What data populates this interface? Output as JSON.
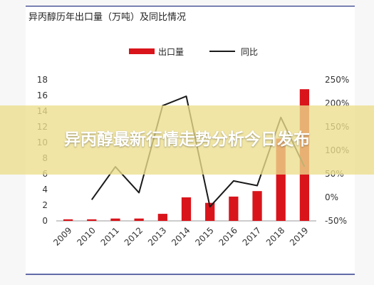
{
  "banner": {
    "text": "异丙醇最新行情走势分析今日发布"
  },
  "chart_data": {
    "type": "bar+line",
    "title": "异丙醇历年出口量（万吨）及同比情况",
    "legend": {
      "bar_label": "出口量",
      "line_label": "同比",
      "placement": "top-center"
    },
    "categories": [
      "2009",
      "2010",
      "2011",
      "2012",
      "2013",
      "2014",
      "2015",
      "2016",
      "2017",
      "2018",
      "2019"
    ],
    "series": [
      {
        "name": "出口量",
        "type": "bar",
        "axis": "left",
        "values": [
          0.2,
          0.2,
          0.3,
          0.3,
          0.9,
          3.0,
          2.3,
          3.1,
          3.8,
          10.5,
          16.8
        ]
      },
      {
        "name": "同比",
        "type": "line",
        "axis": "right",
        "values": [
          null,
          -5,
          65,
          10,
          195,
          215,
          -20,
          35,
          25,
          170,
          65
        ]
      }
    ],
    "y_left": {
      "min": 0,
      "max": 18,
      "ticks": [
        0,
        2,
        4,
        6,
        8,
        10,
        12,
        14,
        16,
        18
      ]
    },
    "y_right": {
      "min": -50,
      "max": 250,
      "ticks": [
        -50,
        0,
        50,
        100,
        150,
        200,
        250
      ],
      "tick_labels": [
        "-50%",
        "0%",
        "50%",
        "100%",
        "150%",
        "200%",
        "250%"
      ]
    },
    "colors": {
      "bar": "#d9141b",
      "line": "#1a1a1a"
    },
    "grid": false
  }
}
